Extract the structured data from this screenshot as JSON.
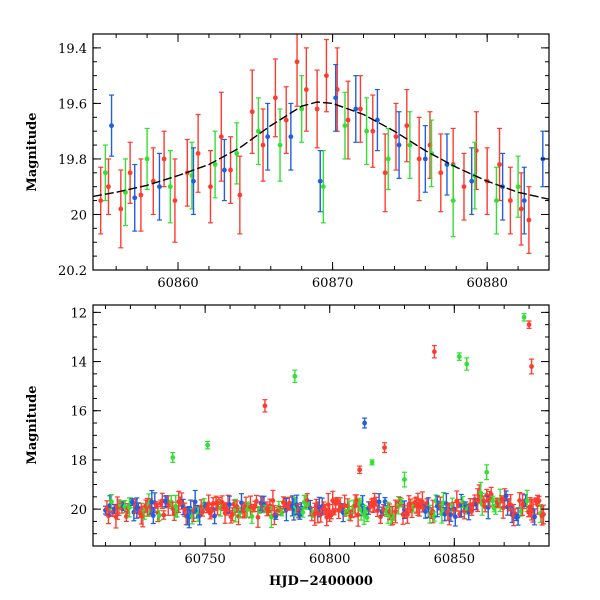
{
  "chart_data": [
    {
      "type": "scatter",
      "panel": "top",
      "title": "",
      "xlabel": "",
      "ylabel": "Magnitude",
      "xlim": [
        60854.5,
        60884
      ],
      "ylim": [
        20.2,
        19.35
      ],
      "y_inverted": true,
      "xticks": [
        60860,
        60870,
        60880
      ],
      "xtick_labels": [
        "60860",
        "60870",
        "60880"
      ],
      "yticks": [
        19.4,
        19.6,
        19.8,
        20.0,
        20.2
      ],
      "ytick_labels": [
        "19.4",
        "19.6",
        "19.8",
        "20",
        "20.2"
      ],
      "grid": false,
      "colors": {
        "red": "#ff3b2f",
        "green": "#33e033",
        "blue": "#1f5fe0",
        "model": "#000000"
      },
      "series": [
        {
          "color": "red",
          "x": [
            60855.0,
            60855.5,
            60856.3,
            60856.9,
            60857.6,
            60858.4,
            60859.1,
            60859.8,
            60860.6,
            60861.3,
            60862.1,
            60862.8,
            60863.4,
            60864.0,
            60864.8,
            60865.5,
            60866.3,
            60867.0,
            60867.7,
            60868.3,
            60869.0,
            60869.6,
            60870.3,
            60871.0,
            60871.8,
            60872.6,
            60873.4,
            60874.1,
            60874.8,
            60875.6,
            60876.3,
            60877.0,
            60877.8,
            60878.5,
            60879.3,
            60880.0,
            60880.8,
            60881.5,
            60882.2,
            60882.7
          ],
          "y": [
            19.95,
            19.9,
            19.98,
            19.85,
            19.93,
            19.88,
            19.8,
            19.95,
            19.85,
            19.78,
            19.9,
            19.72,
            19.84,
            19.93,
            19.63,
            19.75,
            19.58,
            19.66,
            19.45,
            19.55,
            19.62,
            19.5,
            19.55,
            19.66,
            19.62,
            19.7,
            19.85,
            19.72,
            19.68,
            19.8,
            19.75,
            19.85,
            19.82,
            19.9,
            19.77,
            19.88,
            19.82,
            19.95,
            19.98,
            20.02
          ],
          "err": [
            0.12,
            0.1,
            0.14,
            0.11,
            0.13,
            0.12,
            0.1,
            0.15,
            0.12,
            0.14,
            0.13,
            0.16,
            0.12,
            0.14,
            0.15,
            0.13,
            0.14,
            0.12,
            0.16,
            0.15,
            0.14,
            0.13,
            0.15,
            0.14,
            0.12,
            0.13,
            0.14,
            0.12,
            0.13,
            0.15,
            0.12,
            0.14,
            0.13,
            0.12,
            0.14,
            0.12,
            0.13,
            0.12,
            0.13,
            0.12
          ]
        },
        {
          "color": "green",
          "x": [
            60855.3,
            60856.6,
            60858.0,
            60859.5,
            60860.9,
            60862.4,
            60863.8,
            60865.2,
            60866.6,
            60868.0,
            60869.4,
            60870.8,
            60872.2,
            60873.6,
            60875.0,
            60876.4,
            60877.8,
            60879.2,
            60880.6,
            60882.0
          ],
          "y": [
            19.85,
            19.92,
            19.8,
            19.9,
            19.86,
            19.82,
            19.78,
            19.7,
            19.75,
            19.62,
            19.9,
            19.68,
            19.7,
            19.8,
            19.75,
            19.78,
            19.95,
            19.86,
            19.95,
            19.9
          ],
          "err": [
            0.1,
            0.12,
            0.11,
            0.13,
            0.12,
            0.12,
            0.11,
            0.12,
            0.13,
            0.12,
            0.13,
            0.12,
            0.12,
            0.11,
            0.12,
            0.12,
            0.13,
            0.12,
            0.12,
            0.11
          ]
        },
        {
          "color": "blue",
          "x": [
            60855.7,
            60857.2,
            60858.8,
            60861.0,
            60863.0,
            60865.8,
            60867.3,
            60869.2,
            60870.2,
            60871.5,
            60872.9,
            60874.3,
            60876.0,
            60877.4,
            60879.0,
            60881.0,
            60882.4,
            60883.6
          ],
          "y": [
            19.68,
            19.94,
            19.9,
            19.88,
            19.84,
            19.72,
            19.72,
            19.88,
            19.58,
            19.62,
            19.66,
            19.75,
            19.8,
            19.82,
            19.88,
            19.9,
            19.95,
            19.8
          ],
          "err": [
            0.11,
            0.12,
            0.12,
            0.12,
            0.11,
            0.12,
            0.12,
            0.11,
            0.12,
            0.12,
            0.11,
            0.12,
            0.12,
            0.11,
            0.12,
            0.12,
            0.12,
            0.1
          ]
        }
      ],
      "model_curve": {
        "color": "model",
        "x": [
          60854.5,
          60856,
          60858,
          60860,
          60862,
          60864,
          60866,
          60868,
          60869,
          60870,
          60872,
          60874,
          60876,
          60878,
          60880,
          60882,
          60884
        ],
        "y": [
          19.935,
          19.92,
          19.895,
          19.86,
          19.82,
          19.76,
          19.68,
          19.61,
          19.595,
          19.6,
          19.64,
          19.7,
          19.77,
          19.83,
          19.88,
          19.92,
          19.945
        ]
      }
    },
    {
      "type": "scatter",
      "panel": "bottom",
      "title": "",
      "xlabel": "HJD−2400000",
      "ylabel": "Magnitude",
      "xlim": [
        60705,
        60888
      ],
      "ylim": [
        21.5,
        11.7
      ],
      "y_inverted": true,
      "xticks": [
        60750,
        60800,
        60850
      ],
      "xtick_labels": [
        "60750",
        "60800",
        "60850"
      ],
      "yticks": [
        12,
        14,
        16,
        18,
        20
      ],
      "ytick_labels": [
        "12",
        "14",
        "16",
        "18",
        "20"
      ],
      "grid": false,
      "colors": {
        "red": "#ff3b2f",
        "green": "#33e033",
        "blue": "#1f5fe0"
      },
      "baseline_band": {
        "x_start": 60710,
        "x_end": 60886,
        "y_center": 20.0,
        "scatter": 0.35
      },
      "outliers": [
        {
          "color": "green",
          "x": 60737,
          "y": 17.9,
          "err": 0.2
        },
        {
          "color": "green",
          "x": 60751,
          "y": 17.4,
          "err": 0.15
        },
        {
          "color": "red",
          "x": 60774,
          "y": 15.8,
          "err": 0.25
        },
        {
          "color": "green",
          "x": 60786,
          "y": 14.6,
          "err": 0.25
        },
        {
          "color": "blue",
          "x": 60814,
          "y": 16.5,
          "err": 0.2
        },
        {
          "color": "red",
          "x": 60812,
          "y": 18.4,
          "err": 0.15
        },
        {
          "color": "green",
          "x": 60817,
          "y": 18.1,
          "err": 0.1
        },
        {
          "color": "red",
          "x": 60822,
          "y": 17.5,
          "err": 0.2
        },
        {
          "color": "red",
          "x": 60842,
          "y": 13.6,
          "err": 0.25
        },
        {
          "color": "green",
          "x": 60852,
          "y": 13.8,
          "err": 0.15
        },
        {
          "color": "green",
          "x": 60855,
          "y": 14.1,
          "err": 0.25
        },
        {
          "color": "green",
          "x": 60878,
          "y": 12.2,
          "err": 0.15
        },
        {
          "color": "red",
          "x": 60880,
          "y": 12.5,
          "err": 0.15
        },
        {
          "color": "red",
          "x": 60881,
          "y": 14.2,
          "err": 0.3
        },
        {
          "color": "green",
          "x": 60863,
          "y": 18.5,
          "err": 0.3
        },
        {
          "color": "green",
          "x": 60830,
          "y": 18.8,
          "err": 0.3
        }
      ]
    }
  ]
}
